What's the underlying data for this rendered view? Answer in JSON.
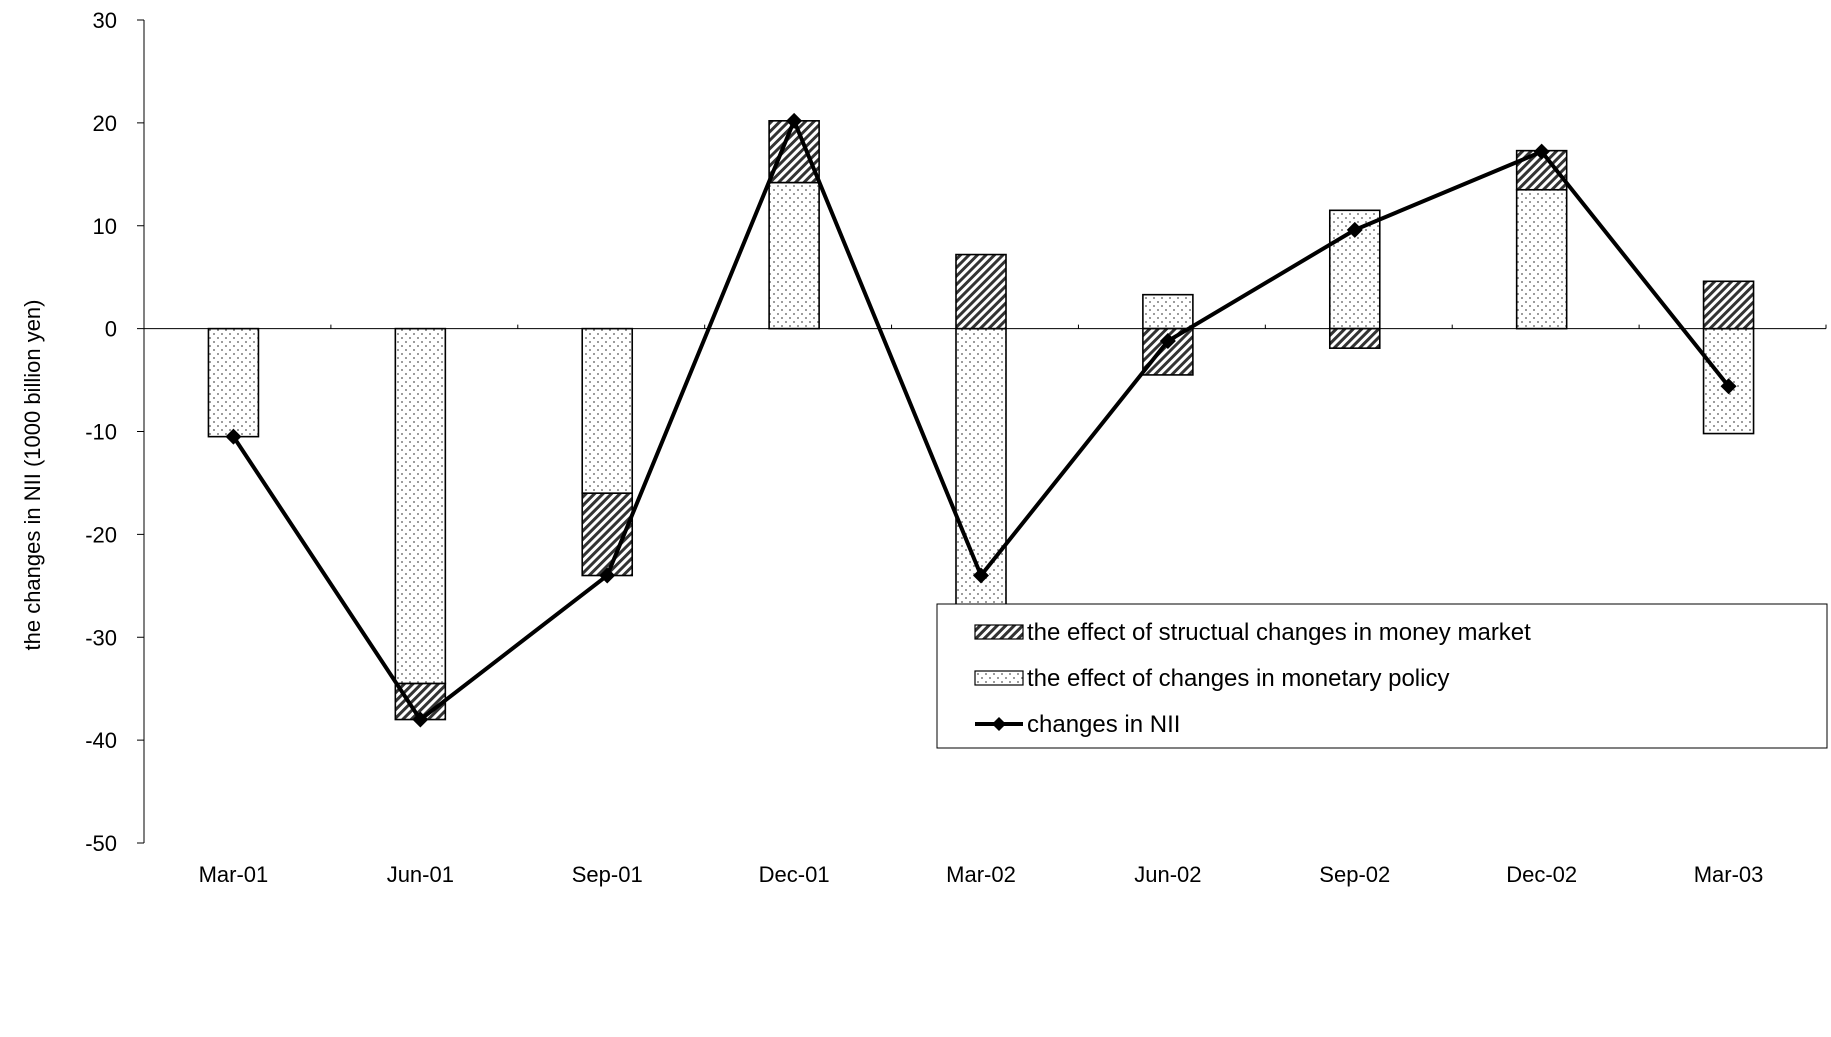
{
  "chart_data": {
    "type": "bar",
    "title": "",
    "xlabel": "",
    "ylabel": "the changes in NII (1000 billion yen)",
    "ylim": [
      -50,
      30
    ],
    "yticks": [
      "30",
      "20",
      "10",
      "0",
      "-10",
      "-20",
      "-30",
      "-40",
      "-50"
    ],
    "categories": [
      "Mar-01",
      "Jun-01",
      "Sep-01",
      "Dec-01",
      "Mar-02",
      "Jun-02",
      "Sep-02",
      "Dec-02",
      "Mar-03"
    ],
    "series": [
      {
        "name": "the effect of changes in monetary policy",
        "kind": "bar",
        "pattern": "dots",
        "values": [
          -10.5,
          -34.5,
          -16.0,
          14.2,
          -31.0,
          3.3,
          11.5,
          13.5,
          -10.2
        ]
      },
      {
        "name": "the effect of structual changes in money market",
        "kind": "bar",
        "pattern": "hatch",
        "values": [
          0.0,
          -3.5,
          -8.0,
          6.0,
          7.2,
          -4.5,
          -1.9,
          3.8,
          4.6
        ]
      },
      {
        "name": "changes in NII",
        "kind": "line",
        "marker": "diamond",
        "values": [
          -10.5,
          -38.0,
          -24.0,
          20.2,
          -24.0,
          -1.2,
          9.6,
          17.2,
          -5.6
        ]
      }
    ],
    "legend_position": "bottom-right",
    "legend_order": [
      1,
      0,
      2
    ],
    "grid": false
  }
}
